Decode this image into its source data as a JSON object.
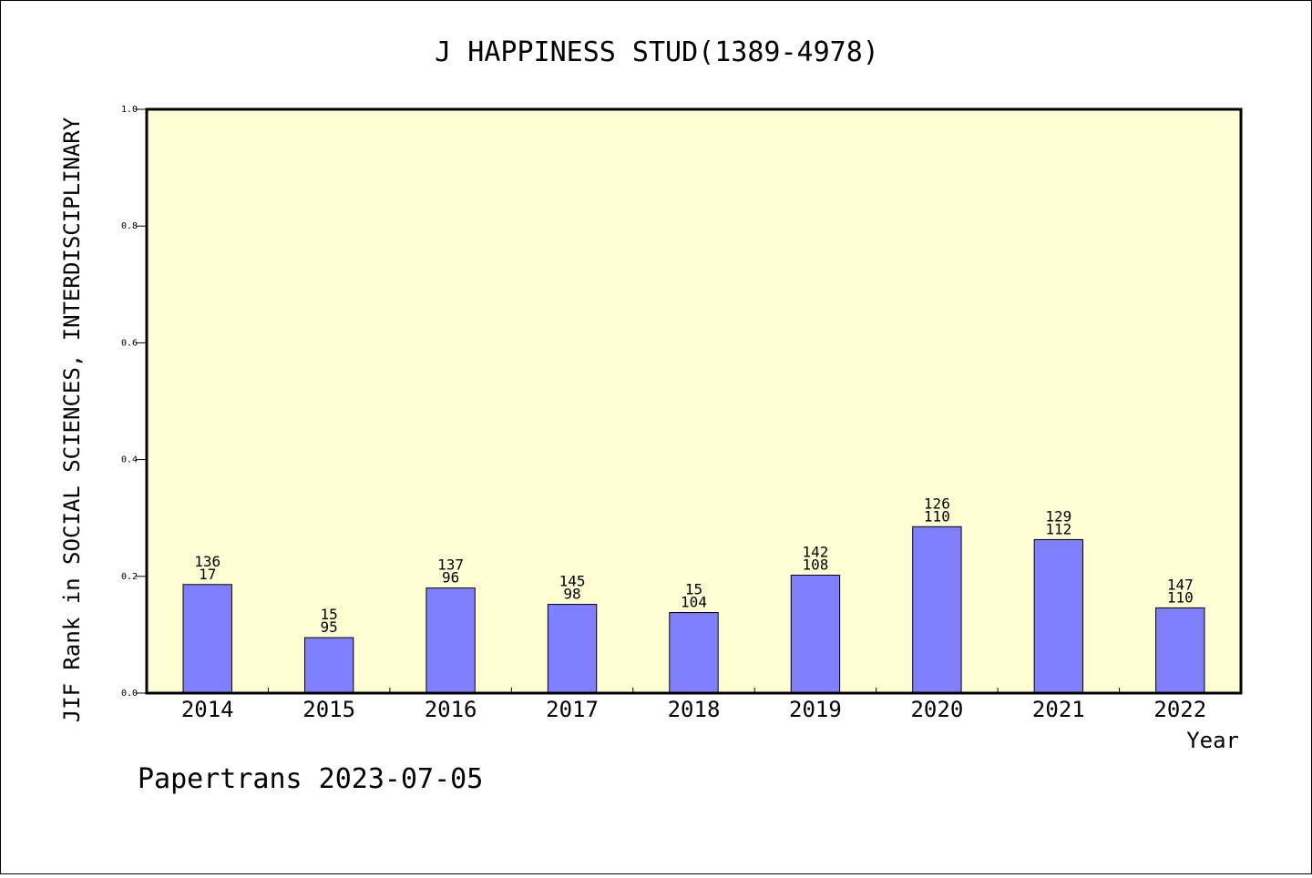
{
  "chart_data": {
    "type": "bar",
    "title": "J HAPPINESS STUD(1389-4978)",
    "xlabel": "Year",
    "ylabel": "JIF Rank in SOCIAL SCIENCES, INTERDISCIPLINARY",
    "ylim": [
      0,
      1.0
    ],
    "yticks": [
      "0.0",
      "0.2",
      "0.4",
      "0.6",
      "0.8",
      "1.0"
    ],
    "grid": false,
    "colors": {
      "bar": "#8080ff",
      "plot_background": "#ffffd3",
      "frame": "#000000"
    },
    "categories": [
      "2014",
      "2015",
      "2016",
      "2017",
      "2018",
      "2019",
      "2020",
      "2021",
      "2022"
    ],
    "values": [
      0.186,
      0.095,
      0.18,
      0.152,
      0.138,
      0.202,
      0.285,
      0.263,
      0.146
    ],
    "bar_labels": [
      {
        "top": "136",
        "bottom": "17"
      },
      {
        "top": "15",
        "bottom": "95"
      },
      {
        "top": "137",
        "bottom": "96"
      },
      {
        "top": "145",
        "bottom": "98"
      },
      {
        "top": "15",
        "bottom": "104"
      },
      {
        "top": "142",
        "bottom": "108"
      },
      {
        "top": "126",
        "bottom": "110"
      },
      {
        "top": "129",
        "bottom": "112"
      },
      {
        "top": "147",
        "bottom": "110"
      }
    ]
  },
  "footer": "Papertrans 2023-07-05"
}
